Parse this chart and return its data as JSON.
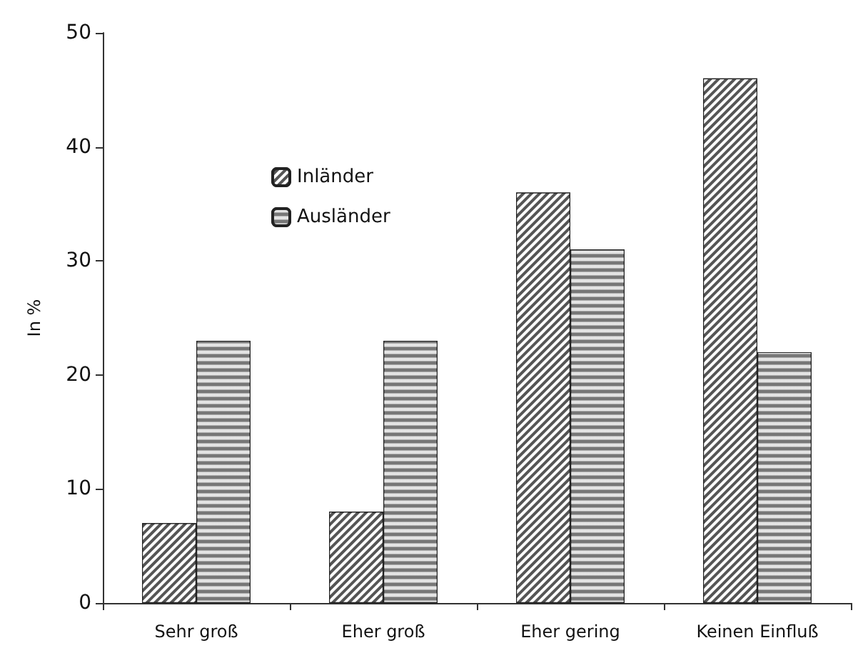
{
  "chart_data": {
    "type": "bar",
    "ylabel": "In %",
    "categories": [
      "Sehr groß",
      "Eher groß",
      "Eher gering",
      "Keinen Einfluß"
    ],
    "series": [
      {
        "name": "Inländer",
        "color": "#555555",
        "values": [
          7,
          8,
          36,
          46
        ]
      },
      {
        "name": "Ausländer",
        "color": "#777777",
        "values": [
          23,
          23,
          31,
          22
        ]
      }
    ],
    "ylim": [
      0,
      50
    ],
    "yticks": [
      0,
      10,
      20,
      30,
      40,
      50
    ],
    "grid": false,
    "legend": "top left"
  }
}
